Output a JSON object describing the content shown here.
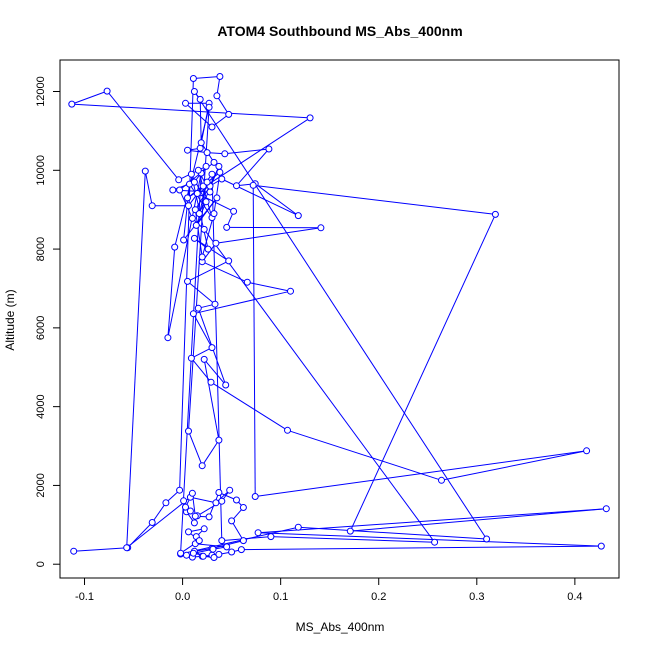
{
  "chart_data": {
    "type": "line",
    "title": "ATOM4 Southbound MS_Abs_400nm",
    "xlabel": "MS_Abs_400nm",
    "ylabel": "Altitude (m)",
    "xlim": [
      -0.125,
      0.445
    ],
    "ylim": [
      -350,
      12800
    ],
    "x_ticks": [
      -0.1,
      0.0,
      0.1,
      0.2,
      0.3,
      0.4
    ],
    "x_tick_labels": [
      "-0.1",
      "0.0",
      "0.1",
      "0.2",
      "0.3",
      "0.4"
    ],
    "y_ticks": [
      0,
      2000,
      4000,
      6000,
      8000,
      10000,
      12000
    ],
    "y_tick_labels": [
      "0",
      "2000",
      "4000",
      "6000",
      "8000",
      "10000",
      "12000"
    ],
    "grid": false,
    "series_color": "#0000ff",
    "marker": "open-circle",
    "series": [
      {
        "points": [
          [
            -0.111,
            330
          ],
          [
            -0.056,
            420
          ],
          [
            -0.031,
            1060
          ],
          [
            -0.017,
            1560
          ],
          [
            -0.003,
            1880
          ],
          [
            0.011,
            12330
          ],
          [
            0.038,
            12380
          ],
          [
            0.035,
            11890
          ],
          [
            0.047,
            11420
          ],
          [
            0.03,
            11100
          ],
          [
            0.003,
            11700
          ],
          [
            0.027,
            11700
          ],
          [
            0.018,
            10560
          ],
          [
            0.005,
            10510
          ],
          [
            0.025,
            10450
          ],
          [
            0.043,
            10420
          ],
          [
            0.088,
            10540
          ],
          [
            0.055,
            9610
          ],
          [
            0.074,
            9660
          ],
          [
            0.118,
            8850
          ],
          [
            0.04,
            9780
          ],
          [
            0.015,
            9410
          ],
          [
            0.052,
            8960
          ],
          [
            0.045,
            8550
          ],
          [
            0.141,
            8540
          ],
          [
            0.034,
            8150
          ],
          [
            0.02,
            7680
          ],
          [
            0.066,
            7160
          ],
          [
            0.11,
            6930
          ],
          [
            0.011,
            6360
          ],
          [
            0.03,
            5500
          ],
          [
            0.009,
            5230
          ],
          [
            0.029,
            4620
          ],
          [
            0.107,
            3400
          ],
          [
            0.264,
            2130
          ],
          [
            0.412,
            2880
          ],
          [
            0.074,
            1720
          ],
          [
            0.072,
            9620
          ],
          [
            0.319,
            8880
          ],
          [
            0.171,
            840
          ],
          [
            0.432,
            1410
          ],
          [
            0.077,
            800
          ],
          [
            0.427,
            460
          ],
          [
            0.06,
            370
          ],
          [
            0.05,
            310
          ],
          [
            0.037,
            250
          ],
          [
            0.03,
            230
          ],
          [
            0.02,
            200
          ],
          [
            0.01,
            180
          ],
          [
            0.004,
            230
          ],
          [
            -0.002,
            260
          ],
          [
            0.118,
            940
          ],
          [
            0.31,
            640
          ],
          [
            0.012,
            12000
          ],
          [
            0.018,
            11800
          ],
          [
            0.019,
            10700
          ],
          [
            0.032,
            10200
          ],
          [
            -0.003,
            9500
          ],
          [
            0.01,
            8780
          ],
          [
            0.022,
            8500
          ],
          [
            0.257,
            560
          ],
          [
            0.09,
            700
          ],
          [
            0.04,
            600
          ],
          [
            0.03,
            9900
          ],
          [
            0.021,
            9600
          ],
          [
            0.006,
            9100
          ],
          [
            -0.031,
            9100
          ],
          [
            -0.038,
            9980
          ],
          [
            -0.057,
            420
          ],
          [
            0.008,
            1700
          ],
          [
            0.034,
            1560
          ],
          [
            0.048,
            1880
          ],
          [
            0.04,
            1600
          ],
          [
            0.015,
            1230
          ],
          [
            0.012,
            1050
          ],
          [
            0.004,
            1330
          ],
          [
            0.001,
            1610
          ],
          [
            0.008,
            1350
          ],
          [
            0.003,
            1450
          ],
          [
            0.01,
            1800
          ],
          [
            0.013,
            1220
          ],
          [
            0.027,
            1200
          ],
          [
            0.037,
            1820
          ],
          [
            0.055,
            1630
          ],
          [
            0.062,
            1440
          ],
          [
            0.05,
            1100
          ],
          [
            0.062,
            600
          ],
          [
            0.03,
            400
          ],
          [
            0.012,
            330
          ],
          [
            0.021,
            200
          ],
          [
            0.032,
            170
          ],
          [
            0.011,
            280
          ],
          [
            0.031,
            380
          ],
          [
            0.045,
            440
          ],
          [
            0.013,
            520
          ],
          [
            0.014,
            700
          ],
          [
            0.022,
            900
          ],
          [
            0.006,
            820
          ],
          [
            0.017,
            600
          ],
          [
            -0.002,
            280
          ],
          [
            0.019,
            9930
          ],
          [
            -0.015,
            5750
          ],
          [
            -0.008,
            8050
          ],
          [
            0.027,
            11600
          ],
          [
            0.006,
            3380
          ],
          [
            0.02,
            2500
          ],
          [
            0.037,
            3150
          ],
          [
            0.022,
            5200
          ],
          [
            0.044,
            4550
          ],
          [
            0.016,
            6500
          ],
          [
            0.033,
            6600
          ],
          [
            0.005,
            7180
          ],
          [
            0.047,
            7700
          ],
          [
            0.012,
            8270
          ],
          [
            0.026,
            8000
          ],
          [
            0.009,
            9900
          ],
          [
            0.024,
            9200
          ],
          [
            0.014,
            8600
          ],
          [
            0.035,
            9300
          ],
          [
            0.001,
            8230
          ],
          [
            0.007,
            9650
          ],
          [
            0.03,
            8800
          ],
          [
            0.016,
            10000
          ],
          [
            0.028,
            9450
          ],
          [
            -0.01,
            9500
          ],
          [
            0.012,
            9700
          ],
          [
            0.024,
            10100
          ],
          [
            -0.004,
            9760
          ],
          [
            -0.077,
            12010
          ],
          [
            -0.113,
            11680
          ],
          [
            0.13,
            11330
          ],
          [
            0.005,
            9300
          ],
          [
            0.038,
            9950
          ],
          [
            0.032,
            8900
          ],
          [
            0.02,
            7800
          ],
          [
            0.013,
            9000
          ],
          [
            0.028,
            9600
          ],
          [
            0.037,
            10100
          ],
          [
            0.017,
            8900
          ],
          [
            0.025,
            9700
          ]
        ]
      }
    ]
  }
}
